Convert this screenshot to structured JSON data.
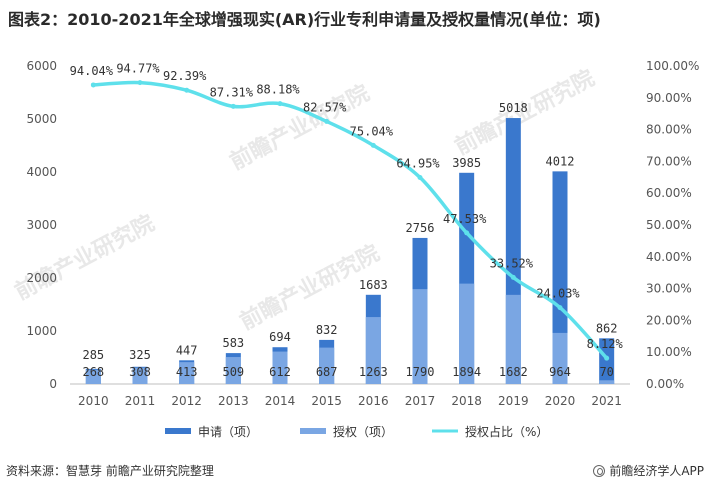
{
  "title": "图表2：2010-2021年全球增强现实(AR)行业专利申请量及授权量情况(单位：项)",
  "footer": {
    "source": "资料来源：智慧芽 前瞻产业研究院整理",
    "brand": "前瞻经济学人APP"
  },
  "watermark_text": "前瞻产业研究院",
  "colors": {
    "apply": "#3a78cd",
    "grant": "#7aa6e3",
    "ratio": "#5ee0eb",
    "axis_text": "#555555"
  },
  "chart_data": {
    "type": "bar",
    "categories": [
      "2010",
      "2011",
      "2012",
      "2013",
      "2014",
      "2015",
      "2016",
      "2017",
      "2018",
      "2019",
      "2020",
      "2021"
    ],
    "series": [
      {
        "name": "申请（项）",
        "type": "bar",
        "axis": "left",
        "values": [
          285,
          325,
          447,
          583,
          694,
          832,
          1683,
          2756,
          3985,
          5018,
          4012,
          862
        ],
        "labels": [
          "285",
          "325",
          "447",
          "583",
          "694",
          "832",
          "1683",
          "2756",
          "3985",
          "5018",
          "4012",
          "862"
        ]
      },
      {
        "name": "授权（项）",
        "type": "bar",
        "axis": "left",
        "values": [
          268,
          308,
          413,
          509,
          612,
          687,
          1263,
          1790,
          1894,
          1682,
          964,
          70
        ],
        "labels": [
          "268",
          "308",
          "413",
          "509",
          "612",
          "687",
          "1263",
          "1790",
          "1894",
          "1682",
          "964",
          "70"
        ]
      },
      {
        "name": "授权占比（%）",
        "type": "line",
        "axis": "right",
        "values": [
          94.04,
          94.77,
          92.39,
          87.31,
          88.18,
          82.57,
          75.04,
          64.95,
          47.53,
          33.52,
          24.03,
          8.12
        ],
        "labels": [
          "94.04%",
          "94.77%",
          "92.39%",
          "87.31%",
          "88.18%",
          "82.57%",
          "75.04%",
          "64.95%",
          "47.53%",
          "33.52%",
          "24.03%",
          "8.12%"
        ]
      }
    ],
    "y_left": {
      "min": 0,
      "max": 6000,
      "ticks": [
        "0",
        "1000",
        "2000",
        "3000",
        "4000",
        "5000",
        "6000"
      ]
    },
    "y_right": {
      "min": 0,
      "max": 100,
      "ticks": [
        "0.00%",
        "10.00%",
        "20.00%",
        "30.00%",
        "40.00%",
        "50.00%",
        "60.00%",
        "70.00%",
        "80.00%",
        "90.00%",
        "100.00%"
      ]
    },
    "legend_position": "bottom",
    "grid": false
  }
}
